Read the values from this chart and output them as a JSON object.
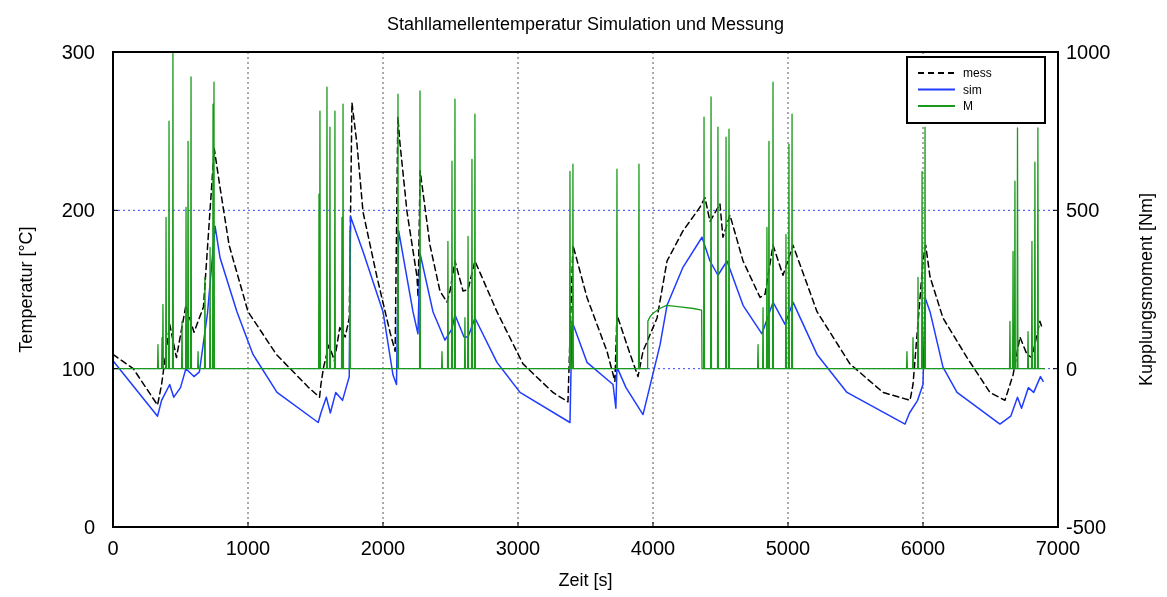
{
  "chart_data": {
    "type": "line",
    "title": "Stahllamellentemperatur Simulation und Messung",
    "xlabel": "Zeit [s]",
    "ylabel": "Temperatur [°C]",
    "y2label": "Kupplungsmoment [Nm]",
    "xlim": [
      0,
      7000
    ],
    "xticks": [
      0,
      1000,
      2000,
      3000,
      4000,
      5000,
      6000,
      7000
    ],
    "ylim": [
      0,
      300
    ],
    "yticks": [
      0,
      100,
      200,
      300
    ],
    "y2lim": [
      -500,
      1000
    ],
    "y2ticks": [
      -500,
      0,
      500,
      1000
    ],
    "grid": true,
    "legend": "top right",
    "series": [
      {
        "name": "mess",
        "color": "#000000",
        "line_style": "dashed",
        "x": [
          0,
          150,
          330,
          360,
          420,
          470,
          540,
          600,
          670,
          750,
          790,
          860,
          1000,
          1210,
          1450,
          1530,
          1540,
          1560,
          1600,
          1640,
          1680,
          1720,
          1750,
          1770,
          1807,
          1852,
          1955,
          2052,
          2090,
          2110,
          2126,
          2178,
          2252,
          2260,
          2275,
          2348,
          2422,
          2474,
          2496,
          2533,
          2593,
          2630,
          2681,
          2844,
          3037,
          3259,
          3370,
          3407,
          3511,
          3659,
          3718,
          3733,
          3807,
          3889,
          3926,
          4030,
          4104,
          4222,
          4348,
          4385,
          4422,
          4496,
          4518,
          4570,
          4667,
          4793,
          4830,
          4889,
          4963,
          5037,
          5215,
          5459,
          5704,
          5904,
          5926,
          6000,
          6020,
          6052,
          6148,
          6326,
          6496,
          6607,
          6667,
          6718,
          6770,
          6807,
          6866,
          6881
        ],
        "values": [
          109,
          100,
          77,
          90,
          128,
          107,
          140,
          123,
          139,
          239,
          216,
          178,
          136,
          109,
          88,
          82,
          90,
          101,
          115,
          105,
          126,
          120,
          132,
          268,
          242,
          199,
          158,
          123,
          111,
          259,
          242,
          199,
          158,
          145,
          225,
          178,
          149,
          142,
          149,
          168,
          149,
          150,
          168,
          136,
          103,
          85,
          79,
          178,
          145,
          111,
          92,
          134,
          115,
          95,
          111,
          132,
          168,
          187,
          202,
          208,
          193,
          204,
          183,
          197,
          168,
          145,
          147,
          178,
          159,
          178,
          136,
          103,
          85,
          80,
          90,
          168,
          178,
          158,
          132,
          107,
          85,
          80,
          96,
          120,
          109,
          107,
          130,
          126
        ]
      },
      {
        "name": "sim",
        "color": "#1f3cff",
        "line_style": "solid",
        "x": [
          0,
          330,
          360,
          420,
          450,
          500,
          540,
          600,
          640,
          700,
          756,
          793,
          918,
          1037,
          1215,
          1520,
          1540,
          1580,
          1610,
          1650,
          1700,
          1750,
          1760,
          1852,
          2000,
          2074,
          2100,
          2116,
          2222,
          2259,
          2274,
          2370,
          2459,
          2510,
          2533,
          2600,
          2630,
          2681,
          2844,
          3015,
          3385,
          3400,
          3511,
          3704,
          3725,
          3733,
          3800,
          3926,
          4052,
          4104,
          4222,
          4363,
          4422,
          4481,
          4548,
          4667,
          4807,
          4889,
          4978,
          5037,
          5215,
          5437,
          5867,
          5900,
          5960,
          6000,
          6015,
          6052,
          6148,
          6252,
          6570,
          6650,
          6700,
          6730,
          6780,
          6820,
          6870,
          6890
        ],
        "values": [
          105,
          70,
          80,
          90,
          82,
          88,
          100,
          95,
          98,
          135,
          190,
          170,
          136,
          109,
          85,
          66,
          72,
          82,
          72,
          85,
          80,
          95,
          196,
          174,
          136,
          96,
          90,
          187,
          136,
          122,
          173,
          136,
          118,
          125,
          134,
          120,
          120,
          132,
          104,
          85,
          66,
          130,
          104,
          90,
          75,
          101,
          88,
          71,
          115,
          140,
          164,
          183,
          168,
          159,
          168,
          140,
          122,
          142,
          128,
          142,
          109,
          85,
          65,
          72,
          80,
          90,
          145,
          136,
          101,
          85,
          65,
          70,
          82,
          75,
          88,
          85,
          95,
          92
        ]
      },
      {
        "name": "M",
        "color": "#1a9a1a",
        "line_style": "solid",
        "axis": "y2",
        "x": [
          0,
          330,
          333,
          336,
          360,
          363,
          366,
          367,
          370,
          373,
          390,
          393,
          396,
          412,
          415,
          418,
          441,
          444,
          447,
          508,
          511,
          514,
          538,
          541,
          544,
          553,
          556,
          559,
          575,
          578,
          581,
          627,
          630,
          633,
          678,
          681,
          684,
          716,
          719,
          722,
          738,
          741,
          744,
          745,
          748,
          751,
          1523,
          1526,
          1529,
          1530,
          1533,
          1536,
          1582,
          1585,
          1588,
          1604,
          1607,
          1610,
          1641,
          1644,
          1647,
          1693,
          1696,
          1699,
          1701,
          1704,
          1707,
          1752,
          1755,
          1758,
          2108,
          2111,
          2114,
          2271,
          2274,
          2277,
          2434,
          2437,
          2440,
          2478,
          2481,
          2484,
          2508,
          2511,
          2514,
          2530,
          2533,
          2536,
          2604,
          2607,
          2610,
          2627,
          2630,
          2633,
          2656,
          2659,
          2662,
          2678,
          2681,
          2684,
          3382,
          3385,
          3388,
          3404,
          3407,
          3410,
          3730,
          3733,
          3736,
          3893,
          3896,
          3899,
          3960,
          3962,
          3980,
          4000,
          4050,
          4100,
          4200,
          4300,
          4360,
          4363,
          4375,
          4378,
          4381,
          4427,
          4430,
          4433,
          4478,
          4481,
          4484,
          4538,
          4541,
          4544,
          4560,
          4563,
          4566,
          4775,
          4778,
          4781,
          4812,
          4815,
          4818,
          4841,
          4844,
          4847,
          4856,
          4859,
          4862,
          4886,
          4889,
          4892,
          4982,
          4985,
          4988,
          5004,
          5007,
          5010,
          5027,
          5030,
          5033,
          5878,
          5881,
          5884,
          5923,
          5926,
          5929,
          5960,
          5963,
          5966,
          5990,
          5993,
          5996,
          6012,
          6015,
          6018,
          6641,
          6644,
          6647,
          6664,
          6667,
          6670,
          6678,
          6681,
          6684,
          6697,
          6700,
          6703,
          6775,
          6778,
          6781,
          6804,
          6807,
          6810,
          6826,
          6829,
          6832,
          6848,
          6851,
          6854,
          6900
        ],
        "values": [
          0,
          0,
          76,
          0,
          0,
          98,
          0,
          0,
          203,
          0,
          0,
          478,
          0,
          0,
          782,
          0,
          0,
          1000,
          0,
          0,
          149,
          0,
          0,
          509,
          0,
          0,
          718,
          0,
          0,
          921,
          0,
          0,
          54,
          0,
          0,
          288,
          0,
          0,
          383,
          0,
          0,
          835,
          0,
          0,
          905,
          0,
          0,
          551,
          0,
          0,
          813,
          0,
          0,
          889,
          0,
          0,
          763,
          0,
          0,
          813,
          0,
          0,
          478,
          0,
          0,
          835,
          0,
          0,
          434,
          0,
          0,
          867,
          0,
          0,
          877,
          0,
          0,
          54,
          0,
          0,
          402,
          0,
          0,
          655,
          0,
          0,
          851,
          0,
          0,
          161,
          0,
          0,
          418,
          0,
          0,
          661,
          0,
          0,
          804,
          0,
          0,
          623,
          0,
          0,
          646,
          0,
          0,
          630,
          0,
          0,
          646,
          0,
          0,
          150,
          165,
          175,
          190,
          200,
          195,
          190,
          185,
          0,
          0,
          794,
          0,
          0,
          858,
          0,
          0,
          763,
          0,
          0,
          731,
          0,
          0,
          756,
          0,
          0,
          76,
          0,
          0,
          193,
          0,
          0,
          446,
          0,
          0,
          718,
          0,
          0,
          905,
          0,
          0,
          424,
          0,
          0,
          709,
          0,
          0,
          804,
          0,
          0,
          54,
          0,
          0,
          98,
          0,
          0,
          288,
          0,
          0,
          623,
          0,
          0,
          763,
          0,
          0,
          149,
          0,
          0,
          370,
          0,
          0,
          592,
          0,
          0,
          760,
          0,
          0,
          117,
          0,
          0,
          402,
          0,
          0,
          652,
          0,
          0,
          760,
          0,
          0
        ]
      }
    ]
  }
}
